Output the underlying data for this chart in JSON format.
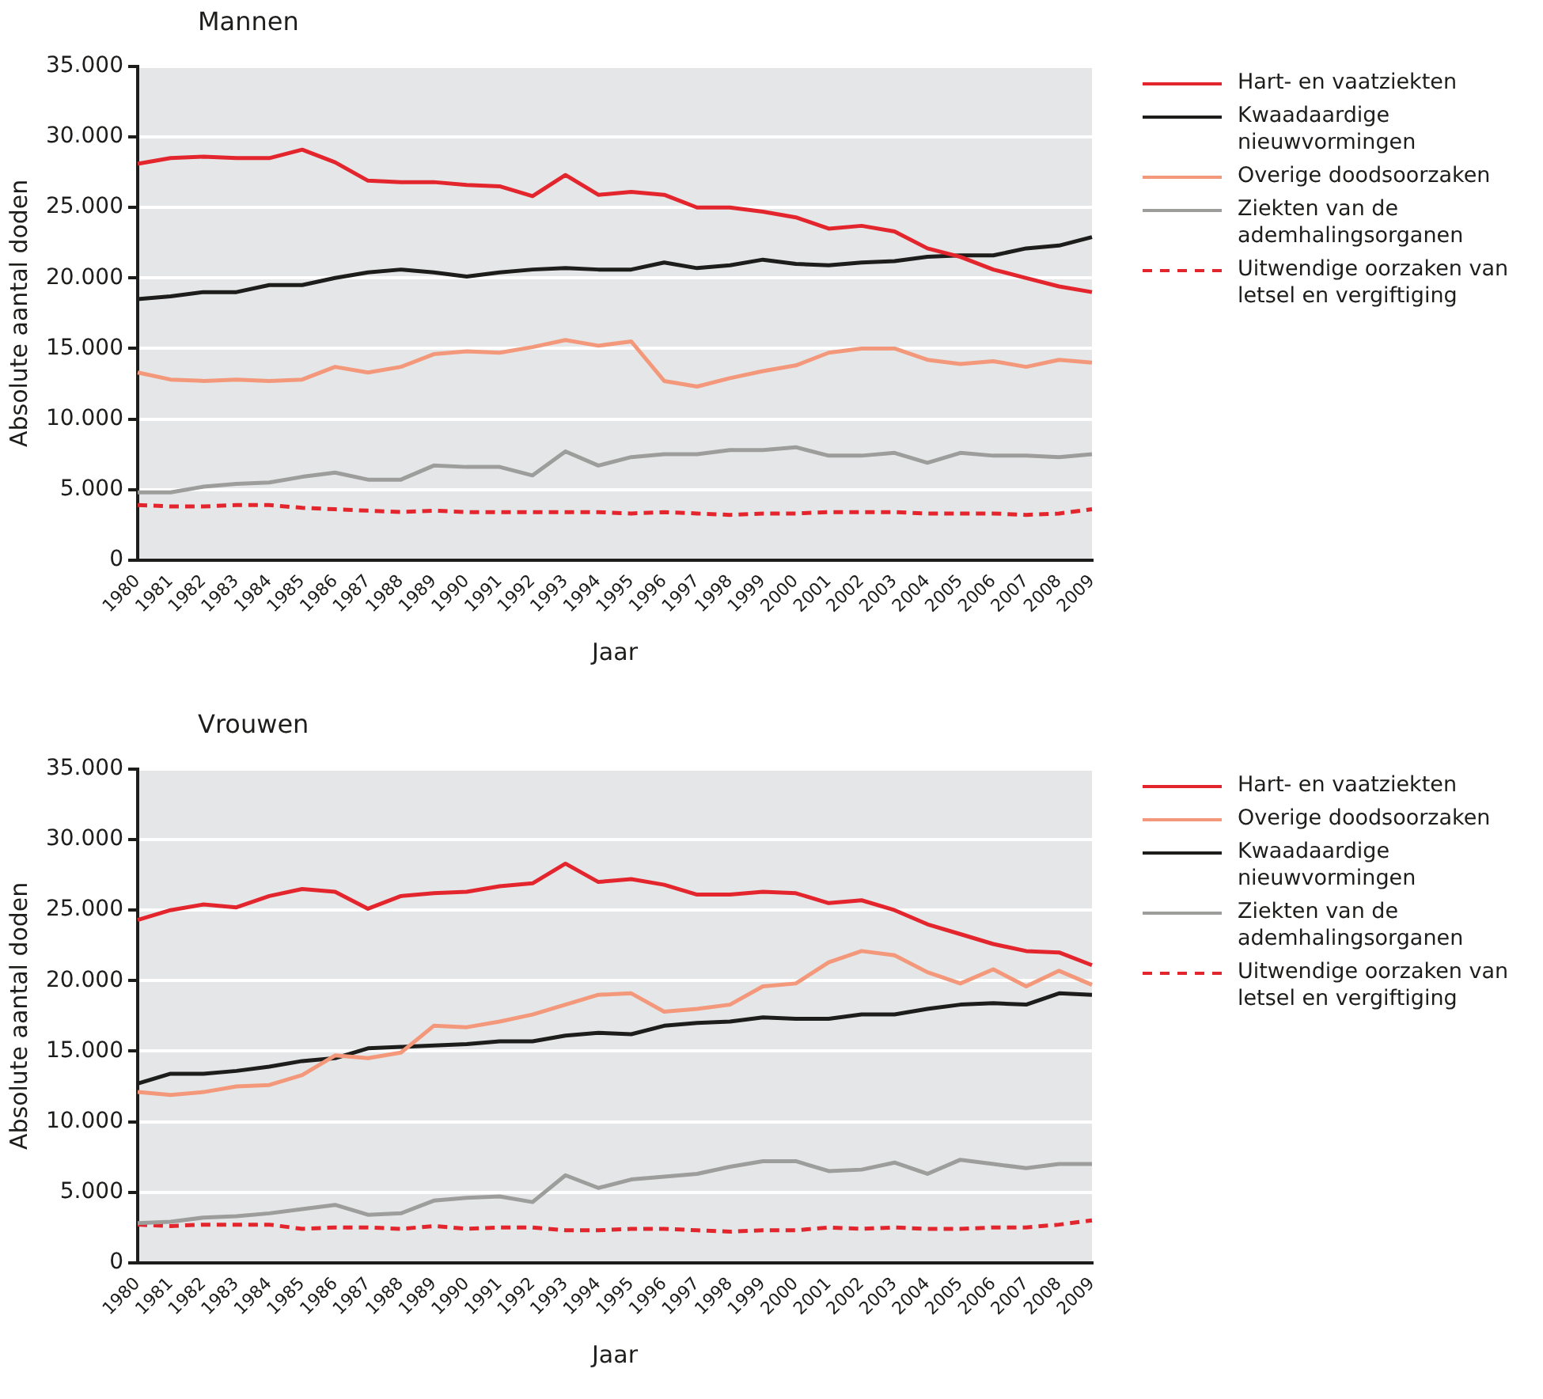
{
  "chart_data": [
    {
      "type": "line",
      "title": "Mannen",
      "xlabel": "Jaar",
      "ylabel": "Absolute aantal doden",
      "legend": "right",
      "grid": "y",
      "marker": "none",
      "categories": [
        "1980",
        "1981",
        "1982",
        "1983",
        "1984",
        "1985",
        "1986",
        "1987",
        "1988",
        "1989",
        "1990",
        "1991",
        "1992",
        "1993",
        "1994",
        "1995",
        "1996",
        "1997",
        "1998",
        "1999",
        "2000",
        "2001",
        "2002",
        "2003",
        "2004",
        "2005",
        "2006",
        "2007",
        "2008",
        "2009"
      ],
      "ylim": [
        0,
        35000
      ],
      "yticks": [
        {
          "value": 0,
          "label": "0"
        },
        {
          "value": 5000,
          "label": "5.000"
        },
        {
          "value": 10000,
          "label": "10.000"
        },
        {
          "value": 15000,
          "label": "15.000"
        },
        {
          "value": 20000,
          "label": "20.000"
        },
        {
          "value": 25000,
          "label": "25.000"
        },
        {
          "value": 30000,
          "label": "30.000"
        },
        {
          "value": 35000,
          "label": "35.000"
        }
      ],
      "series": [
        {
          "name": "Hart- en vaatziekten",
          "color": "#e3262d",
          "line_style": "solid",
          "values": [
            28100,
            28500,
            28600,
            28500,
            28500,
            29100,
            28200,
            26900,
            26800,
            26800,
            26600,
            26500,
            25800,
            27300,
            25900,
            26100,
            25900,
            25000,
            25000,
            24700,
            24300,
            23500,
            23700,
            23300,
            22100,
            21500,
            20600,
            20000,
            19400,
            19000
          ]
        },
        {
          "name": "Kwaadaardige nieuwvormingen",
          "color": "#1d1d1b",
          "line_style": "solid",
          "values": [
            18500,
            18700,
            19000,
            19000,
            19500,
            19500,
            20000,
            20400,
            20600,
            20400,
            20100,
            20400,
            20600,
            20700,
            20600,
            20600,
            21100,
            20700,
            20900,
            21300,
            21000,
            20900,
            21100,
            21200,
            21500,
            21600,
            21600,
            22100,
            22300,
            22900
          ]
        },
        {
          "name": "Overige doodsoorzaken",
          "color": "#f3987a",
          "line_style": "solid",
          "values": [
            13300,
            12800,
            12700,
            12800,
            12700,
            12800,
            13700,
            13300,
            13700,
            14600,
            14800,
            14700,
            15100,
            15600,
            15200,
            15500,
            12700,
            12300,
            12900,
            13400,
            13800,
            14700,
            15000,
            15000,
            14200,
            13900,
            14100,
            13700,
            14200,
            14000
          ]
        },
        {
          "name": "Ziekten van de ademhalingsorganen",
          "color": "#9d9d9c",
          "line_style": "solid",
          "values": [
            4800,
            4800,
            5200,
            5400,
            5500,
            5900,
            6200,
            5700,
            5700,
            6700,
            6600,
            6600,
            6000,
            7700,
            6700,
            7300,
            7500,
            7500,
            7800,
            7800,
            8000,
            7400,
            7400,
            7600,
            6900,
            7600,
            7400,
            7400,
            7300,
            7500
          ]
        },
        {
          "name": "Uitwendige oorzaken van letsel en vergiftiging",
          "color": "#e3262d",
          "line_style": "dashed",
          "values": [
            3900,
            3800,
            3800,
            3900,
            3900,
            3700,
            3600,
            3500,
            3400,
            3500,
            3400,
            3400,
            3400,
            3400,
            3400,
            3300,
            3400,
            3300,
            3200,
            3300,
            3300,
            3400,
            3400,
            3400,
            3300,
            3300,
            3300,
            3200,
            3300,
            3600
          ]
        }
      ]
    },
    {
      "type": "line",
      "title": "Vrouwen",
      "xlabel": "Jaar",
      "ylabel": "Absolute aantal doden",
      "legend": "right",
      "grid": "y",
      "marker": "none",
      "categories": [
        "1980",
        "1981",
        "1982",
        "1983",
        "1984",
        "1985",
        "1986",
        "1987",
        "1988",
        "1989",
        "1990",
        "1991",
        "1992",
        "1993",
        "1994",
        "1995",
        "1996",
        "1997",
        "1998",
        "1999",
        "2000",
        "2001",
        "2002",
        "2003",
        "2004",
        "2005",
        "2006",
        "2007",
        "2008",
        "2009"
      ],
      "ylim": [
        0,
        35000
      ],
      "yticks": [
        {
          "value": 0,
          "label": "0"
        },
        {
          "value": 5000,
          "label": "5.000"
        },
        {
          "value": 10000,
          "label": "10.000"
        },
        {
          "value": 15000,
          "label": "15.000"
        },
        {
          "value": 20000,
          "label": "20.000"
        },
        {
          "value": 25000,
          "label": "25.000"
        },
        {
          "value": 30000,
          "label": "30.000"
        },
        {
          "value": 35000,
          "label": "35.000"
        }
      ],
      "series": [
        {
          "name": "Hart- en vaatziekten",
          "color": "#e3262d",
          "line_style": "solid",
          "values": [
            24300,
            25000,
            25400,
            25200,
            26000,
            26500,
            26300,
            25100,
            26000,
            26200,
            26300,
            26700,
            26900,
            28300,
            27000,
            27200,
            26800,
            26100,
            26100,
            26300,
            26200,
            25500,
            25700,
            25000,
            24000,
            23300,
            22600,
            22100,
            22000,
            21100
          ]
        },
        {
          "name": "Overige doodsoorzaken",
          "color": "#f3987a",
          "line_style": "solid",
          "values": [
            12100,
            11900,
            12100,
            12500,
            12600,
            13300,
            14700,
            14500,
            14900,
            16800,
            16700,
            17100,
            17600,
            18300,
            19000,
            19100,
            17800,
            18000,
            18300,
            19600,
            19800,
            21300,
            22100,
            21800,
            20600,
            19800,
            20800,
            19600,
            20700,
            19700
          ]
        },
        {
          "name": "Kwaadaardige nieuwvormingen",
          "color": "#1d1d1b",
          "line_style": "solid",
          "values": [
            12700,
            13400,
            13400,
            13600,
            13900,
            14300,
            14500,
            15200,
            15300,
            15400,
            15500,
            15700,
            15700,
            16100,
            16300,
            16200,
            16800,
            17000,
            17100,
            17400,
            17300,
            17300,
            17600,
            17600,
            18000,
            18300,
            18400,
            18300,
            19100,
            19000
          ]
        },
        {
          "name": "Ziekten van de ademhalingsorganen",
          "color": "#9d9d9c",
          "line_style": "solid",
          "values": [
            2800,
            2900,
            3200,
            3300,
            3500,
            3800,
            4100,
            3400,
            3500,
            4400,
            4600,
            4700,
            4300,
            6200,
            5300,
            5900,
            6100,
            6300,
            6800,
            7200,
            7200,
            6500,
            6600,
            7100,
            6300,
            7300,
            7000,
            6700,
            7000,
            7000
          ]
        },
        {
          "name": "Uitwendige oorzaken van letsel en vergiftiging",
          "color": "#e3262d",
          "line_style": "dashed",
          "values": [
            2700,
            2600,
            2700,
            2700,
            2700,
            2400,
            2500,
            2500,
            2400,
            2600,
            2400,
            2500,
            2500,
            2300,
            2300,
            2400,
            2400,
            2300,
            2200,
            2300,
            2300,
            2500,
            2400,
            2500,
            2400,
            2400,
            2500,
            2500,
            2700,
            3000
          ]
        }
      ]
    }
  ]
}
